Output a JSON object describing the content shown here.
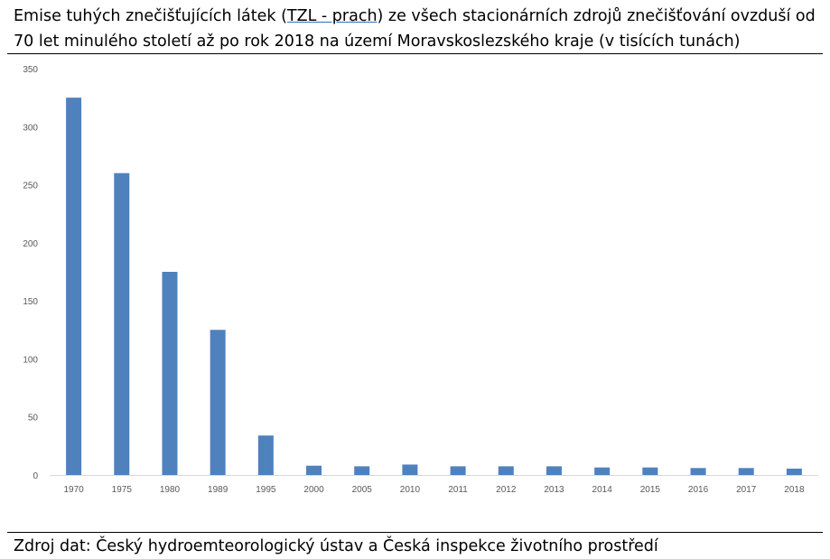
{
  "title": {
    "before": "Emise tuhých znečišťujících látek (",
    "link": "TZL - prach",
    "after": ") ze všech stacionárních zdrojů znečišťování ovzduší od 70 let minulého století až po rok 2018 na území Moravskoslezského kraje (v tisících tunách)"
  },
  "source": "Zdroj dat: Český hydroemteorologický ústav a Česká inspekce životního prostředí",
  "colors": {
    "bar": "#4f81bd",
    "grid": "#d9d9d9",
    "axis_text": "#595959"
  },
  "chart_data": {
    "type": "bar",
    "categories": [
      "1970",
      "1975",
      "1980",
      "1989",
      "1995",
      "2000",
      "2005",
      "2010",
      "2011",
      "2012",
      "2013",
      "2014",
      "2015",
      "2016",
      "2017",
      "2018"
    ],
    "values": [
      325,
      260,
      175,
      125,
      34,
      8,
      7.5,
      9,
      7.5,
      7.5,
      7.5,
      6.5,
      6.5,
      6,
      6,
      5.5
    ],
    "ylim": [
      0,
      350
    ],
    "yticks": [
      0,
      50,
      100,
      150,
      200,
      250,
      300,
      350
    ],
    "grid": false,
    "legend": "none"
  }
}
